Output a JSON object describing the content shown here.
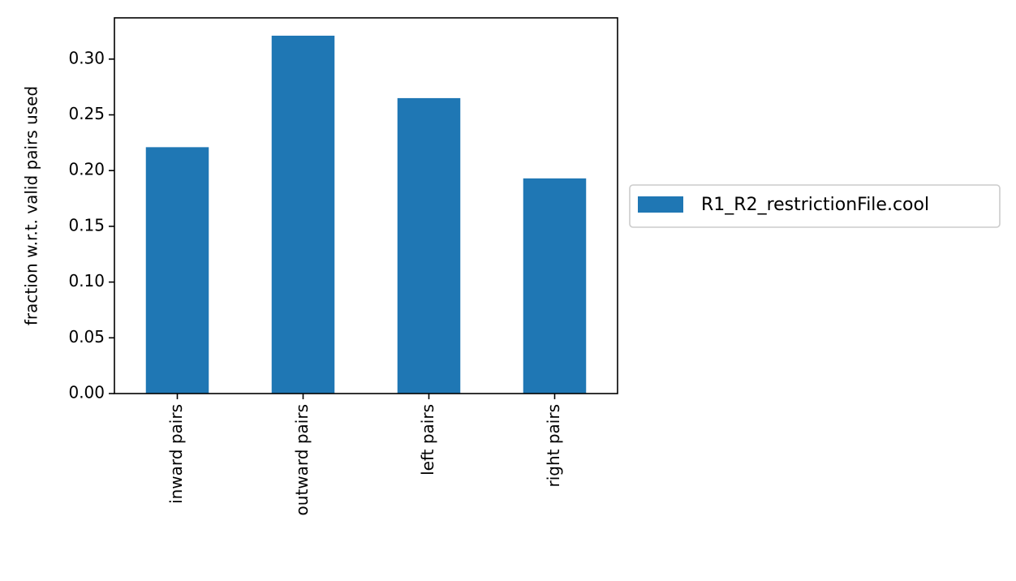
{
  "chart_data": {
    "type": "bar",
    "categories": [
      "inward pairs",
      "outward pairs",
      "left pairs",
      "right pairs"
    ],
    "series": [
      {
        "name": "R1_R2_restrictionFile.cool",
        "values": [
          0.221,
          0.321,
          0.265,
          0.193
        ],
        "color": "#1f77b4"
      }
    ],
    "title": "",
    "xlabel": "",
    "ylabel": "fraction w.r.t. valid pairs used",
    "ylim": [
      0,
      0.337
    ],
    "yticks": [
      "0.00",
      "0.05",
      "0.10",
      "0.15",
      "0.20",
      "0.25",
      "0.30"
    ],
    "grid": false,
    "legend_placement": "outside-right"
  }
}
